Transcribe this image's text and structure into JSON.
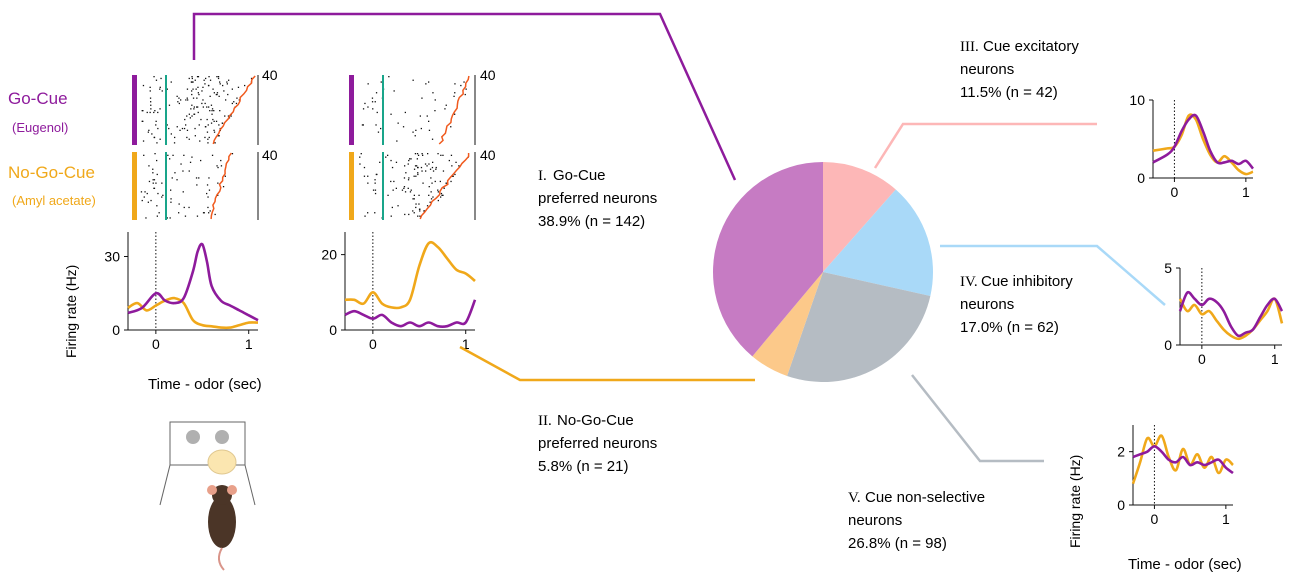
{
  "labels": {
    "go_cue": "Go-Cue",
    "go_odor": "(Eugenol)",
    "nogo_cue": "No-Go-Cue",
    "nogo_odor": "(Amyl acetate)",
    "ylabel": "Firing rate (Hz)",
    "xlabel": "Time - odor (sec)",
    "trials": "40"
  },
  "colors": {
    "go": "#8e1b9c",
    "nogo": "#f0a81a",
    "cue_line": "#19a58a",
    "lick": "#f05a1e",
    "pie_go": "#c67bc3",
    "pie_nogo": "#fcc98a",
    "pie_exc": "#fdb7b7",
    "pie_inh": "#a9d9f8",
    "pie_nonsel": "#b5bcc3"
  },
  "categories": [
    {
      "roman": "I.",
      "name": "Go-Cue",
      "line2": "preferred neurons",
      "stat": "38.9% (n = 142)"
    },
    {
      "roman": "II.",
      "name": "No-Go-Cue",
      "line2": "preferred neurons",
      "stat": "5.8% (n = 21)"
    },
    {
      "roman": "III.",
      "name": "Cue excitatory",
      "line2": "neurons",
      "stat": "11.5% (n = 42)"
    },
    {
      "roman": "IV.",
      "name": "Cue inhibitory",
      "line2": "neurons",
      "stat": "17.0% (n = 62)"
    },
    {
      "roman": "V.",
      "name": "Cue non-selective",
      "line2": "neurons",
      "stat": "26.8% (n = 98)"
    }
  ],
  "chart_data": [
    {
      "type": "pie",
      "slices": [
        {
          "label": "III. Cue excitatory neurons",
          "value": 11.5,
          "n": 42
        },
        {
          "label": "IV. Cue inhibitory neurons",
          "value": 17.0,
          "n": 62
        },
        {
          "label": "V. Cue non-selective neurons",
          "value": 26.8,
          "n": 98
        },
        {
          "label": "II. No-Go-Cue preferred neurons",
          "value": 5.8,
          "n": 21
        },
        {
          "label": "I. Go-Cue preferred neurons",
          "value": 38.9,
          "n": 142
        }
      ]
    },
    {
      "type": "line",
      "xlabel": "Time - odor (sec)",
      "ylabel": "Firing rate (Hz)",
      "xlim": [
        -0.3,
        1.1
      ],
      "ylim": [
        0,
        40
      ],
      "xticks": [
        "0",
        "1"
      ],
      "yticks": [
        "0",
        "30"
      ],
      "series": [
        {
          "name": "Go-Cue",
          "x": [
            -0.3,
            -0.15,
            0,
            0.1,
            0.2,
            0.3,
            0.4,
            0.45,
            0.5,
            0.55,
            0.6,
            0.7,
            0.8,
            0.9,
            1.0,
            1.1
          ],
          "y": [
            7,
            9,
            15,
            12,
            11,
            13,
            24,
            32,
            35,
            28,
            18,
            12,
            10,
            8,
            6,
            4
          ]
        },
        {
          "name": "No-Go-Cue",
          "x": [
            -0.3,
            -0.2,
            -0.1,
            0,
            0.1,
            0.2,
            0.3,
            0.4,
            0.5,
            0.6,
            0.7,
            0.8,
            0.9,
            1.0,
            1.1
          ],
          "y": [
            9,
            11,
            8,
            10,
            12,
            13,
            11,
            4,
            2,
            1.5,
            1,
            1,
            2,
            3,
            3
          ]
        }
      ]
    },
    {
      "type": "line",
      "xlabel": "Time - odor (sec)",
      "ylabel": "Firing rate (Hz)",
      "xlim": [
        -0.3,
        1.1
      ],
      "ylim": [
        0,
        26
      ],
      "xticks": [
        "0",
        "1"
      ],
      "yticks": [
        "0",
        "20"
      ],
      "series": [
        {
          "name": "Go-Cue",
          "x": [
            -0.3,
            -0.2,
            -0.1,
            0,
            0.1,
            0.2,
            0.3,
            0.4,
            0.5,
            0.6,
            0.7,
            0.8,
            0.9,
            1.0,
            1.1
          ],
          "y": [
            4,
            5,
            4,
            3,
            4,
            2,
            1,
            2,
            1,
            2,
            1,
            1,
            2,
            2,
            8
          ]
        },
        {
          "name": "No-Go-Cue",
          "x": [
            -0.3,
            -0.2,
            -0.1,
            0,
            0.1,
            0.2,
            0.3,
            0.4,
            0.5,
            0.6,
            0.7,
            0.8,
            0.9,
            1.0,
            1.1
          ],
          "y": [
            8,
            8,
            7,
            10,
            7,
            6,
            6,
            8,
            17,
            23,
            22,
            19,
            16,
            15,
            13
          ]
        }
      ]
    },
    {
      "type": "line",
      "xlim": [
        -0.3,
        1.1
      ],
      "ylim": [
        0,
        10
      ],
      "xticks": [
        "0",
        "1"
      ],
      "yticks": [
        "0",
        "10"
      ],
      "series": [
        {
          "name": "Go-Cue",
          "x": [
            -0.3,
            -0.1,
            0,
            0.1,
            0.2,
            0.3,
            0.4,
            0.5,
            0.6,
            0.7,
            0.8,
            0.9,
            1.0,
            1.1
          ],
          "y": [
            2,
            3,
            4,
            6,
            7.5,
            8,
            6,
            3.5,
            2,
            2,
            2.2,
            1.8,
            2.2,
            1.2
          ]
        },
        {
          "name": "No-Go-Cue",
          "x": [
            -0.3,
            -0.1,
            0,
            0.1,
            0.2,
            0.3,
            0.4,
            0.5,
            0.6,
            0.7,
            0.8,
            0.9,
            1.0,
            1.1
          ],
          "y": [
            3.5,
            3.8,
            4,
            5.5,
            8,
            7.5,
            5,
            3,
            2,
            2.8,
            2,
            1,
            0.5,
            0.8
          ]
        }
      ]
    },
    {
      "type": "line",
      "xlim": [
        -0.3,
        1.1
      ],
      "ylim": [
        0,
        5
      ],
      "xticks": [
        "0",
        "1"
      ],
      "yticks": [
        "0",
        "5"
      ],
      "series": [
        {
          "name": "Go-Cue",
          "x": [
            -0.3,
            -0.2,
            -0.1,
            0,
            0.1,
            0.2,
            0.3,
            0.4,
            0.5,
            0.6,
            0.7,
            0.8,
            0.9,
            1.0,
            1.1
          ],
          "y": [
            2.2,
            3.4,
            3,
            2.6,
            3,
            2.8,
            2.2,
            1.2,
            0.6,
            0.8,
            1,
            1.8,
            2.6,
            3,
            2.2
          ]
        },
        {
          "name": "No-Go-Cue",
          "x": [
            -0.3,
            -0.2,
            -0.1,
            0,
            0.1,
            0.2,
            0.3,
            0.4,
            0.5,
            0.6,
            0.7,
            0.8,
            0.9,
            1.0,
            1.1
          ],
          "y": [
            3,
            2.2,
            2.6,
            2,
            2.2,
            1.6,
            1,
            0.6,
            0.4,
            0.6,
            1,
            1.6,
            2.2,
            3,
            1.4
          ]
        }
      ]
    },
    {
      "type": "line",
      "xlabel": "Time - odor (sec)",
      "ylabel": "Firing rate (Hz)",
      "xlim": [
        -0.3,
        1.1
      ],
      "ylim": [
        0,
        3
      ],
      "xticks": [
        "0",
        "1"
      ],
      "yticks": [
        "0",
        "2"
      ],
      "series": [
        {
          "name": "Go-Cue",
          "x": [
            -0.3,
            -0.2,
            -0.1,
            0,
            0.1,
            0.2,
            0.3,
            0.4,
            0.5,
            0.6,
            0.7,
            0.8,
            0.9,
            1.0,
            1.1
          ],
          "y": [
            1.8,
            1.9,
            2,
            2.2,
            2,
            1.7,
            1.6,
            1.8,
            1.5,
            1.6,
            1.5,
            1.6,
            1.7,
            1.4,
            1.2
          ]
        },
        {
          "name": "No-Go-Cue",
          "x": [
            -0.3,
            -0.2,
            -0.1,
            0,
            0.1,
            0.2,
            0.3,
            0.4,
            0.5,
            0.6,
            0.7,
            0.8,
            0.9,
            1.0,
            1.1
          ],
          "y": [
            0.8,
            1.6,
            2.5,
            2.2,
            2.6,
            1.8,
            1.3,
            2.1,
            1.5,
            1.9,
            1.4,
            1.8,
            1.2,
            1.7,
            1.5
          ]
        }
      ]
    }
  ]
}
